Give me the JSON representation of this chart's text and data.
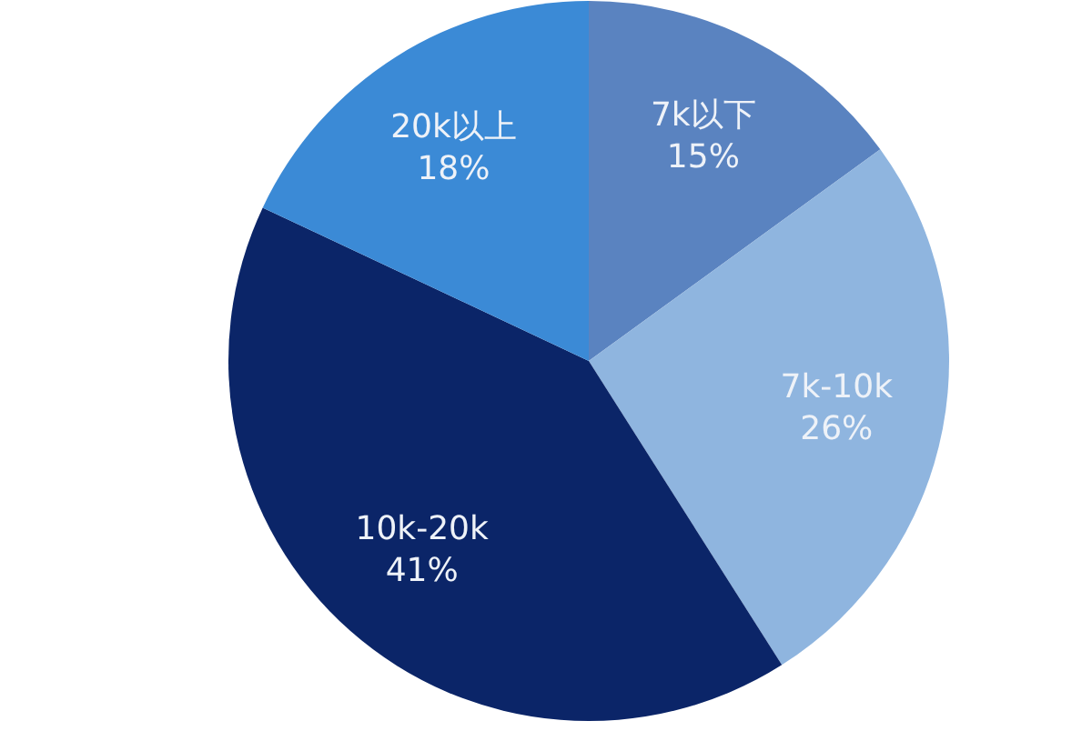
{
  "chart_data": {
    "type": "pie",
    "categories": [
      "7k以下",
      "7k-10k",
      "10k-20k",
      "20k以上"
    ],
    "values": [
      15,
      26,
      41,
      18
    ],
    "colors": [
      "#5a83c0",
      "#8fb5df",
      "#0b2568",
      "#3b8ad6"
    ],
    "value_labels": [
      "15%",
      "26%",
      "41%",
      "18%"
    ]
  }
}
